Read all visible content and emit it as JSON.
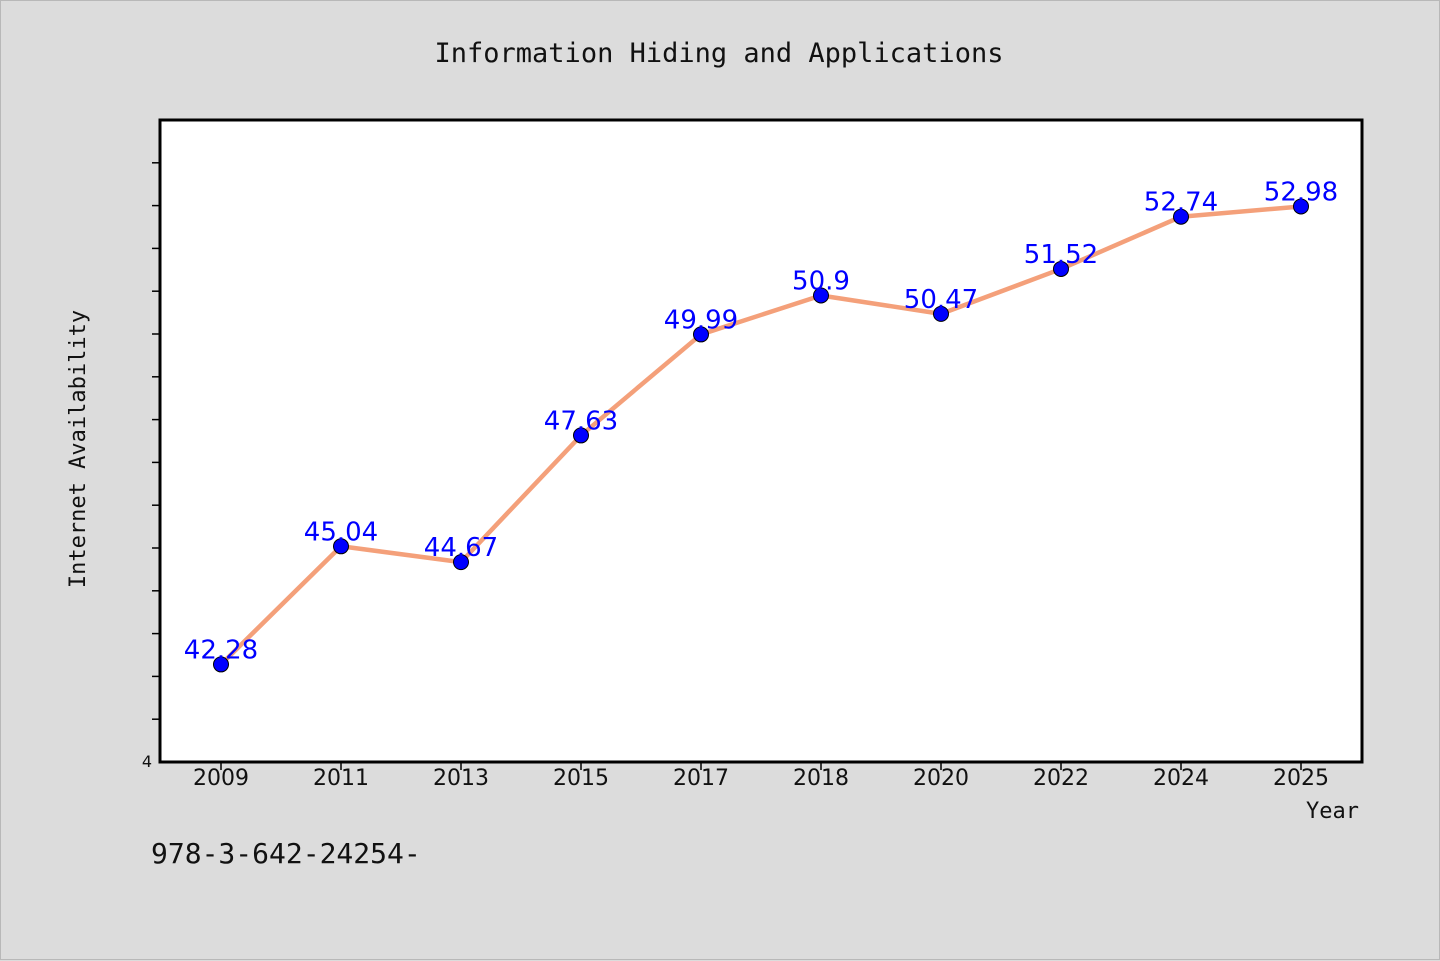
{
  "chart_data": {
    "type": "line",
    "title": "Information Hiding and Applications",
    "xlabel": "Year",
    "ylabel": "Internet Availability",
    "categories": [
      "2009",
      "2011",
      "2013",
      "2015",
      "2017",
      "2018",
      "2020",
      "2022",
      "2024",
      "2025"
    ],
    "series": [
      {
        "values": [
          42.28,
          45.04,
          44.67,
          47.63,
          49.99,
          50.9,
          50.47,
          51.52,
          52.74,
          52.98
        ],
        "labels": [
          "42.28",
          "45.04",
          "44.67",
          "47.63",
          "49.99",
          "50.9",
          "50.47",
          "51.52",
          "52.74",
          "52.98"
        ],
        "line_color": "#f4a07a",
        "marker_color": "#0000ff"
      }
    ],
    "ytick_label": "4",
    "ylim": [
      40,
      55
    ],
    "grid": false,
    "legend": "none"
  },
  "footer": {
    "text": "978-3-642-24254-"
  },
  "colors": {
    "background": "#dcdcdc",
    "plot_background": "#ffffff",
    "data_label": "#0000ff"
  }
}
